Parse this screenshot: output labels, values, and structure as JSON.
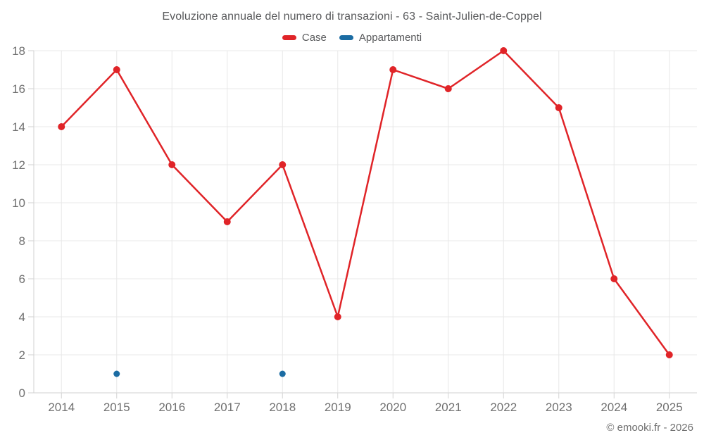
{
  "page": {
    "footer": "© emooki.fr - 2026"
  },
  "chart_data": {
    "type": "line",
    "title": "Evoluzione annuale del numero di transazioni - 63 - Saint-Julien-de-Coppel",
    "categories": [
      "2014",
      "2015",
      "2016",
      "2017",
      "2018",
      "2019",
      "2020",
      "2021",
      "2022",
      "2023",
      "2024",
      "2025"
    ],
    "series": [
      {
        "name": "Case",
        "color": "#e02428",
        "values": [
          14,
          17,
          12,
          9,
          12,
          4,
          17,
          16,
          18,
          15,
          6,
          2
        ]
      },
      {
        "name": "Appartamenti",
        "color": "#1b6ca3",
        "values": [
          null,
          1,
          null,
          null,
          1,
          null,
          null,
          null,
          null,
          null,
          null,
          null
        ]
      }
    ],
    "xlabel": "",
    "ylabel": "",
    "ylim": [
      0,
      18
    ],
    "ytick_step": 2,
    "yticks": [
      0,
      2,
      4,
      6,
      8,
      10,
      12,
      14,
      16,
      18
    ],
    "grid": true,
    "legend_position": "top"
  },
  "colors": {
    "grid": "#e8e8e8",
    "axis": "#d2d2d2",
    "tick_text": "#707070",
    "title_text": "#595a5c"
  }
}
